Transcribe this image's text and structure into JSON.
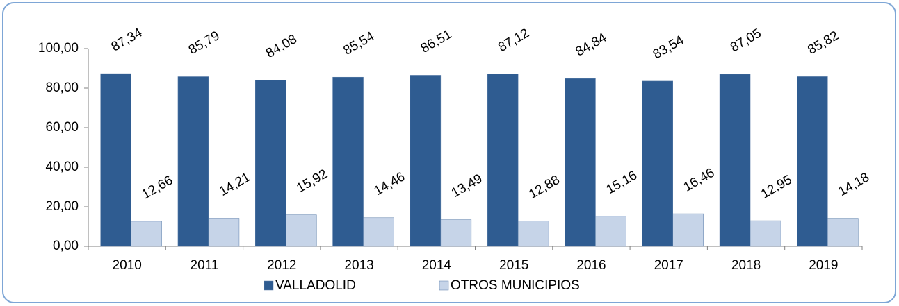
{
  "chart_data": {
    "type": "bar",
    "categories": [
      "2010",
      "2011",
      "2012",
      "2013",
      "2014",
      "2015",
      "2016",
      "2017",
      "2018",
      "2019"
    ],
    "series": [
      {
        "name": "VALLADOLID",
        "color": "#2F5C91",
        "values": [
          87.34,
          85.79,
          84.08,
          85.54,
          86.51,
          87.12,
          84.84,
          83.54,
          87.05,
          85.82
        ],
        "value_labels": [
          "87,34",
          "85,79",
          "84,08",
          "85,54",
          "86,51",
          "87,12",
          "84,84",
          "83,54",
          "87,05",
          "85,82"
        ]
      },
      {
        "name": "OTROS MUNICIPIOS",
        "color": "#C6D4E8",
        "values": [
          12.66,
          14.21,
          15.92,
          14.46,
          13.49,
          12.88,
          15.16,
          16.46,
          12.95,
          14.18
        ],
        "value_labels": [
          "12,66",
          "14,21",
          "15,92",
          "14,46",
          "13,49",
          "12,88",
          "15,16",
          "16,46",
          "12,95",
          "14,18"
        ]
      }
    ],
    "ylim": [
      0,
      100
    ],
    "yticks": [
      {
        "value": 0,
        "label": "0,00"
      },
      {
        "value": 20,
        "label": "20,00"
      },
      {
        "value": 40,
        "label": "40,00"
      },
      {
        "value": 60,
        "label": "60,00"
      },
      {
        "value": 80,
        "label": "80,00"
      },
      {
        "value": 100,
        "label": "100,00"
      }
    ],
    "legend": "bottom"
  }
}
